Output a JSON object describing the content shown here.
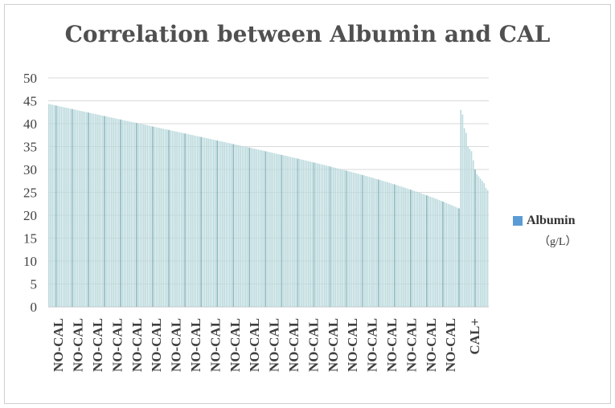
{
  "chart_data": {
    "type": "bar",
    "title": "Correlation between Albumin and CAL",
    "ylim": [
      0,
      50
    ],
    "yticks": [
      0,
      5,
      10,
      15,
      20,
      25,
      30,
      35,
      40,
      45,
      50
    ],
    "grid": true,
    "legend": {
      "position": "right",
      "label": "Albumin",
      "unit": "（g/L）"
    },
    "bar_color": "#bcdadd",
    "bar_accent": "#8ab8c0",
    "groups": [
      {
        "label": "NO-CAL",
        "start": 44.3,
        "end": 21.5,
        "count": 230
      },
      {
        "label": "CAL+",
        "values": [
          43,
          42,
          39,
          38,
          35,
          34.5,
          34,
          32,
          30,
          29,
          28.5,
          28,
          27.5,
          27,
          26,
          25.5
        ]
      }
    ],
    "x_tick_labels": [
      "NO-CAL",
      "NO-CAL",
      "NO-CAL",
      "NO-CAL",
      "NO-CAL",
      "NO-CAL",
      "NO-CAL",
      "NO-CAL",
      "NO-CAL",
      "NO-CAL",
      "NO-CAL",
      "NO-CAL",
      "NO-CAL",
      "NO-CAL",
      "NO-CAL",
      "NO-CAL",
      "NO-CAL",
      "NO-CAL",
      "NO-CAL",
      "NO-CAL",
      "NO-CAL",
      "CAL+"
    ]
  }
}
